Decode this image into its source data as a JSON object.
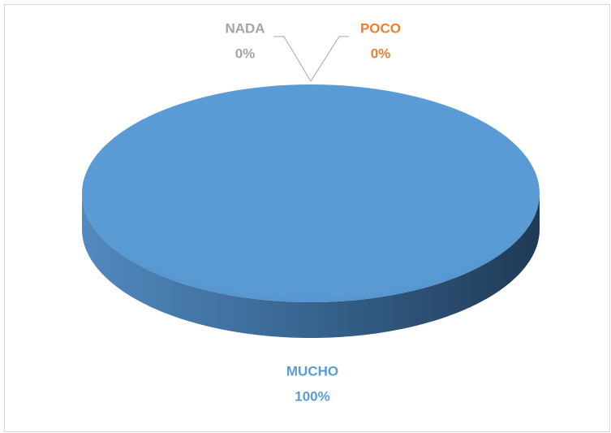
{
  "chart_data": {
    "type": "pie",
    "categories": [
      "NADA",
      "POCO",
      "MUCHO"
    ],
    "values": [
      0,
      0,
      100
    ],
    "value_labels": [
      "0%",
      "0%",
      "100%"
    ],
    "colors": [
      "#a5a5a5",
      "#ed7d31",
      "#5b9bd5"
    ]
  }
}
